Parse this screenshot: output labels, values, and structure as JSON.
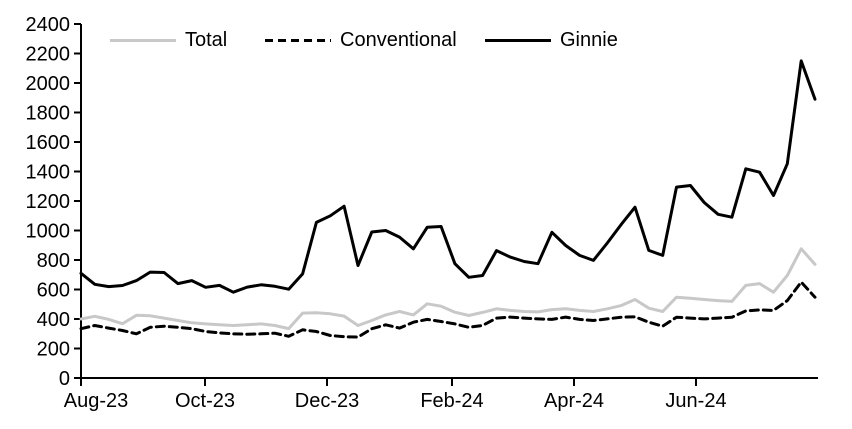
{
  "chart_data": {
    "type": "line",
    "title": "",
    "xlabel": "",
    "ylabel": "",
    "ylim": [
      0,
      2400
    ],
    "ytick_step": 200,
    "ytick_labels": [
      "0",
      "200",
      "400",
      "600",
      "800",
      "1000",
      "1200",
      "1400",
      "1600",
      "1800",
      "2000",
      "2200",
      "2400"
    ],
    "xtick_labels": [
      "Aug-23",
      "Oct-23",
      "Dec-23",
      "Feb-24",
      "Apr-24",
      "Jun-24"
    ],
    "x_unit": "week",
    "grid": "off",
    "legend_position": "top",
    "axis_color": "#000000",
    "background_color": "#ffffff",
    "series": [
      {
        "name": "Total",
        "color": "#c8c8c8",
        "line_style": "solid",
        "values": [
          400,
          418,
          397,
          368,
          425,
          422,
          406,
          390,
          374,
          367,
          361,
          356,
          361,
          367,
          356,
          335,
          440,
          442,
          435,
          420,
          356,
          390,
          428,
          451,
          428,
          503,
          487,
          446,
          424,
          445,
          469,
          458,
          451,
          448,
          464,
          470,
          458,
          451,
          469,
          491,
          532,
          473,
          451,
          548,
          541,
          532,
          525,
          519,
          628,
          640,
          582,
          695,
          876,
          770
        ]
      },
      {
        "name": "Conventional",
        "color": "#000000",
        "line_style": "dashed",
        "values": [
          334,
          356,
          338,
          322,
          300,
          344,
          351,
          344,
          334,
          315,
          306,
          300,
          297,
          300,
          304,
          283,
          327,
          315,
          288,
          280,
          277,
          334,
          361,
          338,
          378,
          397,
          383,
          367,
          344,
          356,
          406,
          413,
          406,
          401,
          397,
          413,
          397,
          390,
          401,
          412,
          415,
          378,
          351,
          412,
          406,
          401,
          406,
          412,
          455,
          462,
          458,
          525,
          650,
          548
        ]
      },
      {
        "name": "Ginnie",
        "color": "#000000",
        "line_style": "solid",
        "values": [
          710,
          635,
          620,
          627,
          660,
          718,
          715,
          640,
          660,
          615,
          628,
          582,
          616,
          632,
          622,
          602,
          706,
          1055,
          1100,
          1165,
          763,
          990,
          1000,
          955,
          876,
          1022,
          1027,
          775,
          683,
          695,
          864,
          820,
          790,
          775,
          988,
          898,
          831,
          797,
          915,
          1040,
          1158,
          865,
          831,
          1294,
          1305,
          1190,
          1110,
          1090,
          1418,
          1395,
          1237,
          1452,
          2150,
          1890
        ]
      }
    ]
  }
}
